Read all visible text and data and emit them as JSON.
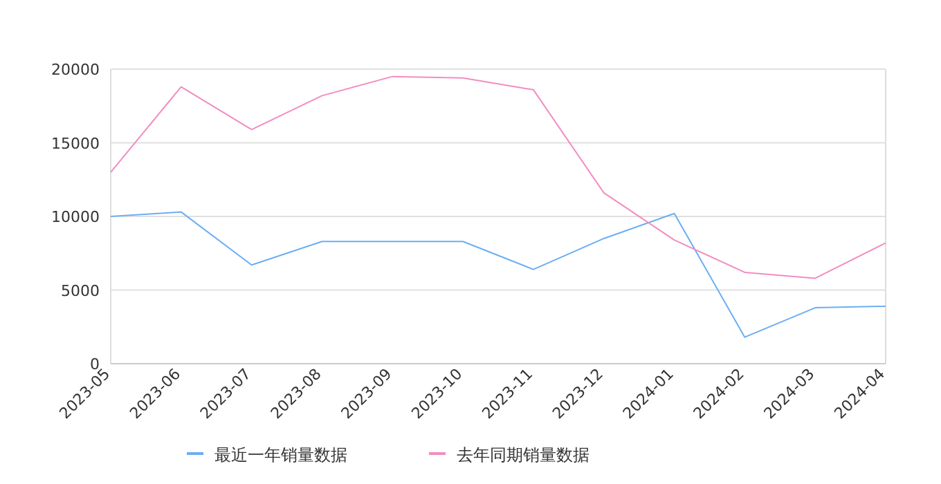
{
  "chart_data": {
    "type": "line",
    "categories": [
      "2023-05",
      "2023-06",
      "2023-07",
      "2023-08",
      "2023-09",
      "2023-10",
      "2023-11",
      "2023-12",
      "2024-01",
      "2024-02",
      "2024-03",
      "2024-04"
    ],
    "series": [
      {
        "name": "最近一年销量数据",
        "color": "#6aaef5",
        "values": [
          10000,
          10300,
          6700,
          8300,
          8300,
          8300,
          6400,
          8500,
          10200,
          1800,
          3800,
          3900
        ]
      },
      {
        "name": "去年同期销量数据",
        "color": "#f38cc0",
        "values": [
          13000,
          18800,
          15900,
          18200,
          19500,
          19400,
          18600,
          11600,
          8400,
          6200,
          5800,
          8200
        ]
      }
    ],
    "ylim": [
      0,
      20000
    ],
    "yticks": [
      0,
      5000,
      10000,
      15000,
      20000
    ],
    "grid": "y",
    "legend": "bottom",
    "marker": "none",
    "line_style": "solid"
  }
}
